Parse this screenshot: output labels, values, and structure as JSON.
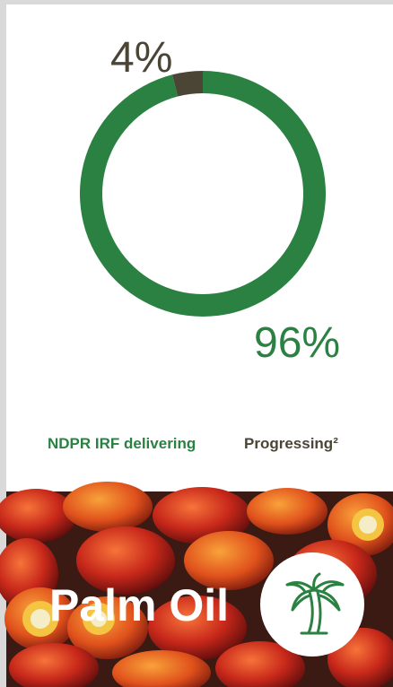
{
  "chart_data": {
    "type": "donut",
    "categories": [
      "NDPR IRF delivering",
      "Progressing²"
    ],
    "values": [
      96,
      4
    ],
    "value_labels": [
      "96%",
      "4%"
    ],
    "colors": [
      "#2a8142",
      "#4b4536"
    ]
  },
  "banner": {
    "title": "Palm Oil"
  }
}
